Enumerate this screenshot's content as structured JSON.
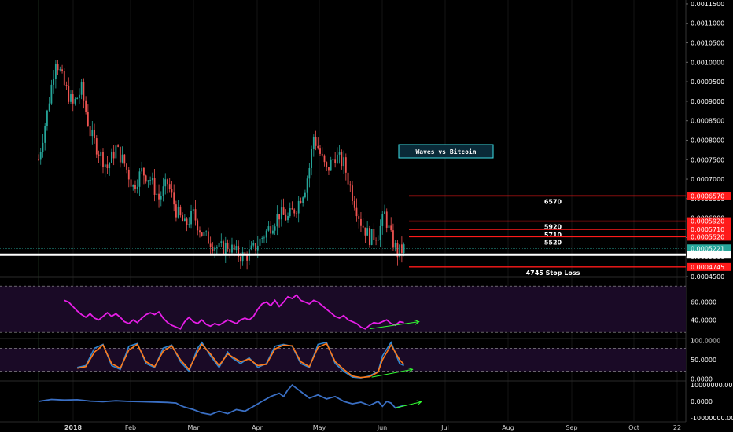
{
  "title": "Waves vs Bitcoin",
  "chart_data": [
    {
      "type": "candlestick",
      "panel": "price",
      "title": "Waves vs Bitcoin",
      "x_ticks": [
        "2018",
        "Feb",
        "Mar",
        "Apr",
        "May",
        "Jun",
        "Jul",
        "Aug",
        "Sep",
        "Oct",
        "22"
      ],
      "y_ticks": [
        "0.0011500",
        "0.0011000",
        "0.0010500",
        "0.0010000",
        "0.0009500",
        "0.0009000",
        "0.0008500",
        "0.0008000",
        "0.0007500",
        "0.0007000",
        "0.0006500",
        "0.0006000",
        "0.0005500",
        "0.0005000",
        "0.0004500"
      ],
      "ylim": [
        0.00045,
        0.00116
      ],
      "close_path": [
        [
          0,
          0.00075
        ],
        [
          4,
          0.00087
        ],
        [
          8,
          0.00101
        ],
        [
          12,
          0.00094
        ],
        [
          16,
          0.00089
        ],
        [
          20,
          0.00093
        ],
        [
          24,
          0.00082
        ],
        [
          28,
          0.00077
        ],
        [
          32,
          0.00073
        ],
        [
          36,
          0.00078
        ],
        [
          40,
          0.00074
        ],
        [
          44,
          0.00068
        ],
        [
          48,
          0.00072
        ],
        [
          52,
          0.0007
        ],
        [
          56,
          0.00065
        ],
        [
          60,
          0.00069
        ],
        [
          64,
          0.00062
        ],
        [
          68,
          0.00058
        ],
        [
          72,
          0.00061
        ],
        [
          76,
          0.00056
        ],
        [
          80,
          0.00054
        ],
        [
          84,
          0.00052
        ],
        [
          88,
          0.00053
        ],
        [
          92,
          0.00051
        ],
        [
          96,
          0.0005
        ],
        [
          100,
          0.00052
        ],
        [
          104,
          0.00055
        ],
        [
          108,
          0.00058
        ],
        [
          112,
          0.00061
        ],
        [
          116,
          0.0006
        ],
        [
          120,
          0.00063
        ],
        [
          124,
          0.00068
        ],
        [
          126,
          0.00073
        ],
        [
          128,
          0.00081
        ],
        [
          130,
          0.00078
        ],
        [
          134,
          0.00072
        ],
        [
          138,
          0.00076
        ],
        [
          142,
          0.00074
        ],
        [
          146,
          0.00066
        ],
        [
          150,
          0.00059
        ],
        [
          154,
          0.00055
        ],
        [
          158,
          0.00056
        ],
        [
          161,
          0.00061
        ],
        [
          164,
          0.00055
        ],
        [
          167,
          0.00051
        ],
        [
          170,
          0.000522
        ]
      ],
      "levels": [
        {
          "value": 0.000657,
          "label": "6570",
          "tag": "0.0006570",
          "color": "#ff1a1a",
          "text_color": "#33ff33"
        },
        {
          "value": 0.000592,
          "label": "5920",
          "tag": "0.0005920",
          "color": "#ff1a1a",
          "text_color": "#33ff33"
        },
        {
          "value": 0.000571,
          "label": "5710",
          "tag": "0.0005710",
          "color": "#ff1a1a",
          "text_color": "#33ff33"
        },
        {
          "value": 0.000552,
          "label": "5520",
          "tag": "0.0005520",
          "color": "#ff1a1a",
          "text_color": "#33ff33"
        },
        {
          "value": 0.0004745,
          "label": "4745 Stop Loss",
          "tag": "0.0004745",
          "color": "#ff1a1a",
          "text_color": "#33ff33"
        }
      ],
      "support": {
        "value": 0.000506,
        "tag": "0.0005060",
        "color": "#ffffff"
      },
      "current": {
        "value": 0.0005221,
        "tag": "0.0005221",
        "color": "#26a69a"
      },
      "colors": {
        "up": "#26a69a",
        "down": "#ef5350"
      }
    },
    {
      "type": "line",
      "panel": "rsi",
      "y_ticks": [
        "60.0000",
        "40.0000"
      ],
      "ylim": [
        20,
        87
      ],
      "band": [
        26,
        78
      ],
      "series": [
        {
          "color": "#e61ee6",
          "points": [
            [
              12,
              62
            ],
            [
              14,
              60
            ],
            [
              16,
              55
            ],
            [
              18,
              50
            ],
            [
              20,
              46
            ],
            [
              22,
              43
            ],
            [
              24,
              47
            ],
            [
              26,
              42
            ],
            [
              28,
              40
            ],
            [
              30,
              44
            ],
            [
              32,
              48
            ],
            [
              34,
              44
            ],
            [
              36,
              47
            ],
            [
              38,
              43
            ],
            [
              40,
              38
            ],
            [
              42,
              36
            ],
            [
              44,
              40
            ],
            [
              46,
              37
            ],
            [
              48,
              42
            ],
            [
              50,
              46
            ],
            [
              52,
              48
            ],
            [
              54,
              46
            ],
            [
              56,
              49
            ],
            [
              58,
              42
            ],
            [
              60,
              37
            ],
            [
              62,
              34
            ],
            [
              64,
              32
            ],
            [
              66,
              30
            ],
            [
              68,
              38
            ],
            [
              70,
              43
            ],
            [
              72,
              38
            ],
            [
              74,
              36
            ],
            [
              76,
              40
            ],
            [
              78,
              35
            ],
            [
              80,
              33
            ],
            [
              82,
              36
            ],
            [
              84,
              34
            ],
            [
              86,
              37
            ],
            [
              88,
              40
            ],
            [
              90,
              38
            ],
            [
              92,
              36
            ],
            [
              94,
              40
            ],
            [
              96,
              42
            ],
            [
              98,
              40
            ],
            [
              100,
              44
            ],
            [
              102,
              52
            ],
            [
              104,
              58
            ],
            [
              106,
              60
            ],
            [
              108,
              56
            ],
            [
              110,
              62
            ],
            [
              112,
              55
            ],
            [
              114,
              60
            ],
            [
              116,
              66
            ],
            [
              118,
              64
            ],
            [
              120,
              68
            ],
            [
              122,
              62
            ],
            [
              124,
              60
            ],
            [
              126,
              58
            ],
            [
              128,
              62
            ],
            [
              130,
              60
            ],
            [
              132,
              56
            ],
            [
              134,
              52
            ],
            [
              136,
              48
            ],
            [
              138,
              44
            ],
            [
              140,
              42
            ],
            [
              142,
              45
            ],
            [
              144,
              40
            ],
            [
              146,
              38
            ],
            [
              148,
              36
            ],
            [
              150,
              32
            ],
            [
              152,
              30
            ],
            [
              154,
              34
            ],
            [
              156,
              37
            ],
            [
              158,
              36
            ],
            [
              160,
              38
            ],
            [
              162,
              40
            ],
            [
              164,
              36
            ],
            [
              166,
              34
            ],
            [
              168,
              38
            ],
            [
              170,
              37
            ]
          ]
        }
      ],
      "annotations": [
        {
          "type": "arrow",
          "from": [
            154,
            30
          ],
          "to": [
            177,
            38
          ],
          "color": "#33ff33"
        }
      ]
    },
    {
      "type": "line",
      "panel": "stoch_rsi",
      "y_ticks": [
        "100.0000",
        "50.0000",
        "0.0000"
      ],
      "ylim": [
        -3,
        103
      ],
      "band": [
        20,
        80
      ],
      "series": [
        {
          "color": "#2f86d1",
          "points": [
            [
              18,
              30
            ],
            [
              22,
              35
            ],
            [
              26,
              80
            ],
            [
              30,
              90
            ],
            [
              34,
              35
            ],
            [
              38,
              25
            ],
            [
              42,
              85
            ],
            [
              46,
              92
            ],
            [
              50,
              40
            ],
            [
              54,
              30
            ],
            [
              58,
              80
            ],
            [
              62,
              88
            ],
            [
              66,
              45
            ],
            [
              70,
              20
            ],
            [
              74,
              80
            ],
            [
              76,
              95
            ],
            [
              80,
              60
            ],
            [
              84,
              30
            ],
            [
              88,
              70
            ],
            [
              90,
              55
            ],
            [
              94,
              40
            ],
            [
              98,
              55
            ],
            [
              102,
              30
            ],
            [
              106,
              40
            ],
            [
              110,
              85
            ],
            [
              114,
              90
            ],
            [
              118,
              85
            ],
            [
              122,
              40
            ],
            [
              126,
              30
            ],
            [
              130,
              90
            ],
            [
              134,
              95
            ],
            [
              138,
              40
            ],
            [
              142,
              20
            ],
            [
              146,
              5
            ],
            [
              150,
              3
            ],
            [
              154,
              8
            ],
            [
              158,
              20
            ],
            [
              160,
              60
            ],
            [
              164,
              95
            ],
            [
              168,
              40
            ],
            [
              170,
              35
            ]
          ]
        },
        {
          "color": "#ff7a1a",
          "points": [
            [
              18,
              28
            ],
            [
              22,
              32
            ],
            [
              26,
              70
            ],
            [
              30,
              88
            ],
            [
              34,
              40
            ],
            [
              38,
              28
            ],
            [
              42,
              75
            ],
            [
              46,
              90
            ],
            [
              50,
              45
            ],
            [
              54,
              32
            ],
            [
              58,
              72
            ],
            [
              62,
              86
            ],
            [
              66,
              50
            ],
            [
              70,
              25
            ],
            [
              74,
              70
            ],
            [
              76,
              90
            ],
            [
              80,
              65
            ],
            [
              84,
              35
            ],
            [
              88,
              65
            ],
            [
              90,
              58
            ],
            [
              94,
              45
            ],
            [
              98,
              52
            ],
            [
              102,
              35
            ],
            [
              106,
              38
            ],
            [
              110,
              78
            ],
            [
              114,
              88
            ],
            [
              118,
              86
            ],
            [
              122,
              45
            ],
            [
              126,
              32
            ],
            [
              130,
              82
            ],
            [
              134,
              92
            ],
            [
              138,
              45
            ],
            [
              142,
              25
            ],
            [
              146,
              8
            ],
            [
              150,
              4
            ],
            [
              154,
              6
            ],
            [
              158,
              18
            ],
            [
              160,
              50
            ],
            [
              164,
              88
            ],
            [
              168,
              50
            ],
            [
              170,
              38
            ]
          ]
        }
      ],
      "annotations": [
        {
          "type": "arrow",
          "from": [
            155,
            5
          ],
          "to": [
            174,
            25
          ],
          "color": "#33ff33"
        }
      ]
    },
    {
      "type": "line",
      "panel": "obv",
      "y_ticks": [
        "10000000.0000",
        "0.0000",
        "-10000000.0000"
      ],
      "ylim": [
        -12000000,
        12000000
      ],
      "series": [
        {
          "color": "#3a6fc4",
          "points": [
            [
              0,
              0
            ],
            [
              6,
              1200000
            ],
            [
              12,
              800000
            ],
            [
              18,
              1000000
            ],
            [
              24,
              200000
            ],
            [
              30,
              -200000
            ],
            [
              36,
              400000
            ],
            [
              42,
              0
            ],
            [
              48,
              -200000
            ],
            [
              54,
              -400000
            ],
            [
              60,
              -600000
            ],
            [
              64,
              -1000000
            ],
            [
              66,
              -2500000
            ],
            [
              68,
              -3500000
            ],
            [
              72,
              -5000000
            ],
            [
              76,
              -7000000
            ],
            [
              80,
              -8000000
            ],
            [
              84,
              -6000000
            ],
            [
              88,
              -7500000
            ],
            [
              92,
              -5000000
            ],
            [
              96,
              -6000000
            ],
            [
              100,
              -3000000
            ],
            [
              104,
              0
            ],
            [
              108,
              3000000
            ],
            [
              112,
              5000000
            ],
            [
              114,
              3000000
            ],
            [
              116,
              7000000
            ],
            [
              118,
              10000000
            ],
            [
              122,
              6000000
            ],
            [
              126,
              2000000
            ],
            [
              130,
              4000000
            ],
            [
              134,
              1500000
            ],
            [
              138,
              3000000
            ],
            [
              142,
              0
            ],
            [
              146,
              -1500000
            ],
            [
              150,
              -500000
            ],
            [
              154,
              -2500000
            ],
            [
              158,
              0
            ],
            [
              160,
              -3000000
            ],
            [
              162,
              0
            ],
            [
              164,
              -1000000
            ],
            [
              166,
              -4000000
            ],
            [
              170,
              -2500000
            ]
          ]
        }
      ],
      "annotations": [
        {
          "type": "arrow",
          "from": [
            166,
            -4000000
          ],
          "to": [
            178,
            -300000
          ],
          "color": "#33ff33"
        }
      ]
    }
  ]
}
